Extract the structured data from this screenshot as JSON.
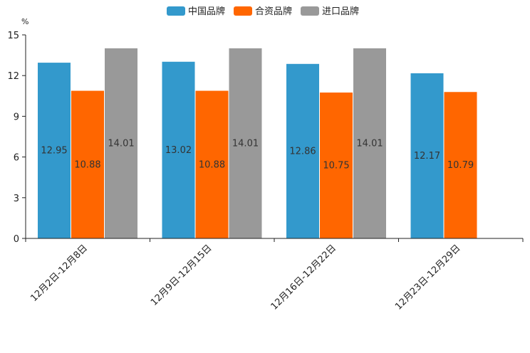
{
  "chart_data": {
    "type": "bar",
    "title": "",
    "xlabel": "",
    "ylabel": "",
    "unit": "%",
    "ylim": [
      0,
      15
    ],
    "yticks": [
      0,
      3,
      6,
      9,
      12,
      15
    ],
    "categories": [
      "12月2日-12月8日",
      "12月9日-12月15日",
      "12月16日-12月22日",
      "12月23日-12月29日"
    ],
    "series": [
      {
        "name": "中国品牌",
        "color": "#3399cc",
        "values": [
          12.95,
          13.02,
          12.86,
          12.17
        ],
        "labels": [
          "12.95",
          "13.02",
          "12.86",
          "12.17"
        ]
      },
      {
        "name": "合资品牌",
        "color": "#ff6600",
        "values": [
          10.88,
          10.88,
          10.75,
          10.79
        ],
        "labels": [
          "10.88",
          "10.88",
          "10.75",
          "10.79"
        ]
      },
      {
        "name": "进口品牌",
        "color": "#999999",
        "values": [
          14.01,
          14.01,
          14.01,
          null
        ],
        "labels": [
          "14.01",
          "14.01",
          "14.01",
          ""
        ]
      }
    ],
    "legend_position": "top-center",
    "grid": false
  }
}
